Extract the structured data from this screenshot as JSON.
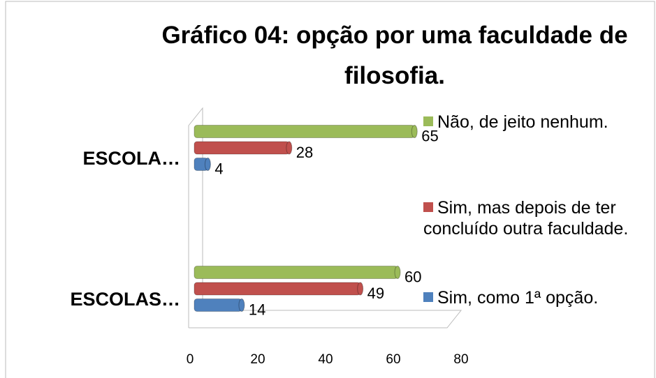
{
  "chart_data": {
    "type": "bar",
    "orientation": "horizontal",
    "title": "Gráfico 04: opção por uma faculdade de filosofia.",
    "categories": [
      "ESCOLA…",
      "ESCOLAS…"
    ],
    "series": [
      {
        "name": "Sim, como 1ª opção.",
        "color": "#4f81bd",
        "values": [
          4,
          14
        ]
      },
      {
        "name": "Sim, mas depois de ter concluído outra faculdade.",
        "color": "#c0504d",
        "values": [
          28,
          49
        ]
      },
      {
        "name": "Não, de jeito nenhum.",
        "color": "#9bbb59",
        "values": [
          65,
          60
        ]
      }
    ],
    "xlim": [
      0,
      80
    ],
    "xticks": [
      0,
      20,
      40,
      60,
      80
    ],
    "grid": false,
    "legend": "right"
  }
}
